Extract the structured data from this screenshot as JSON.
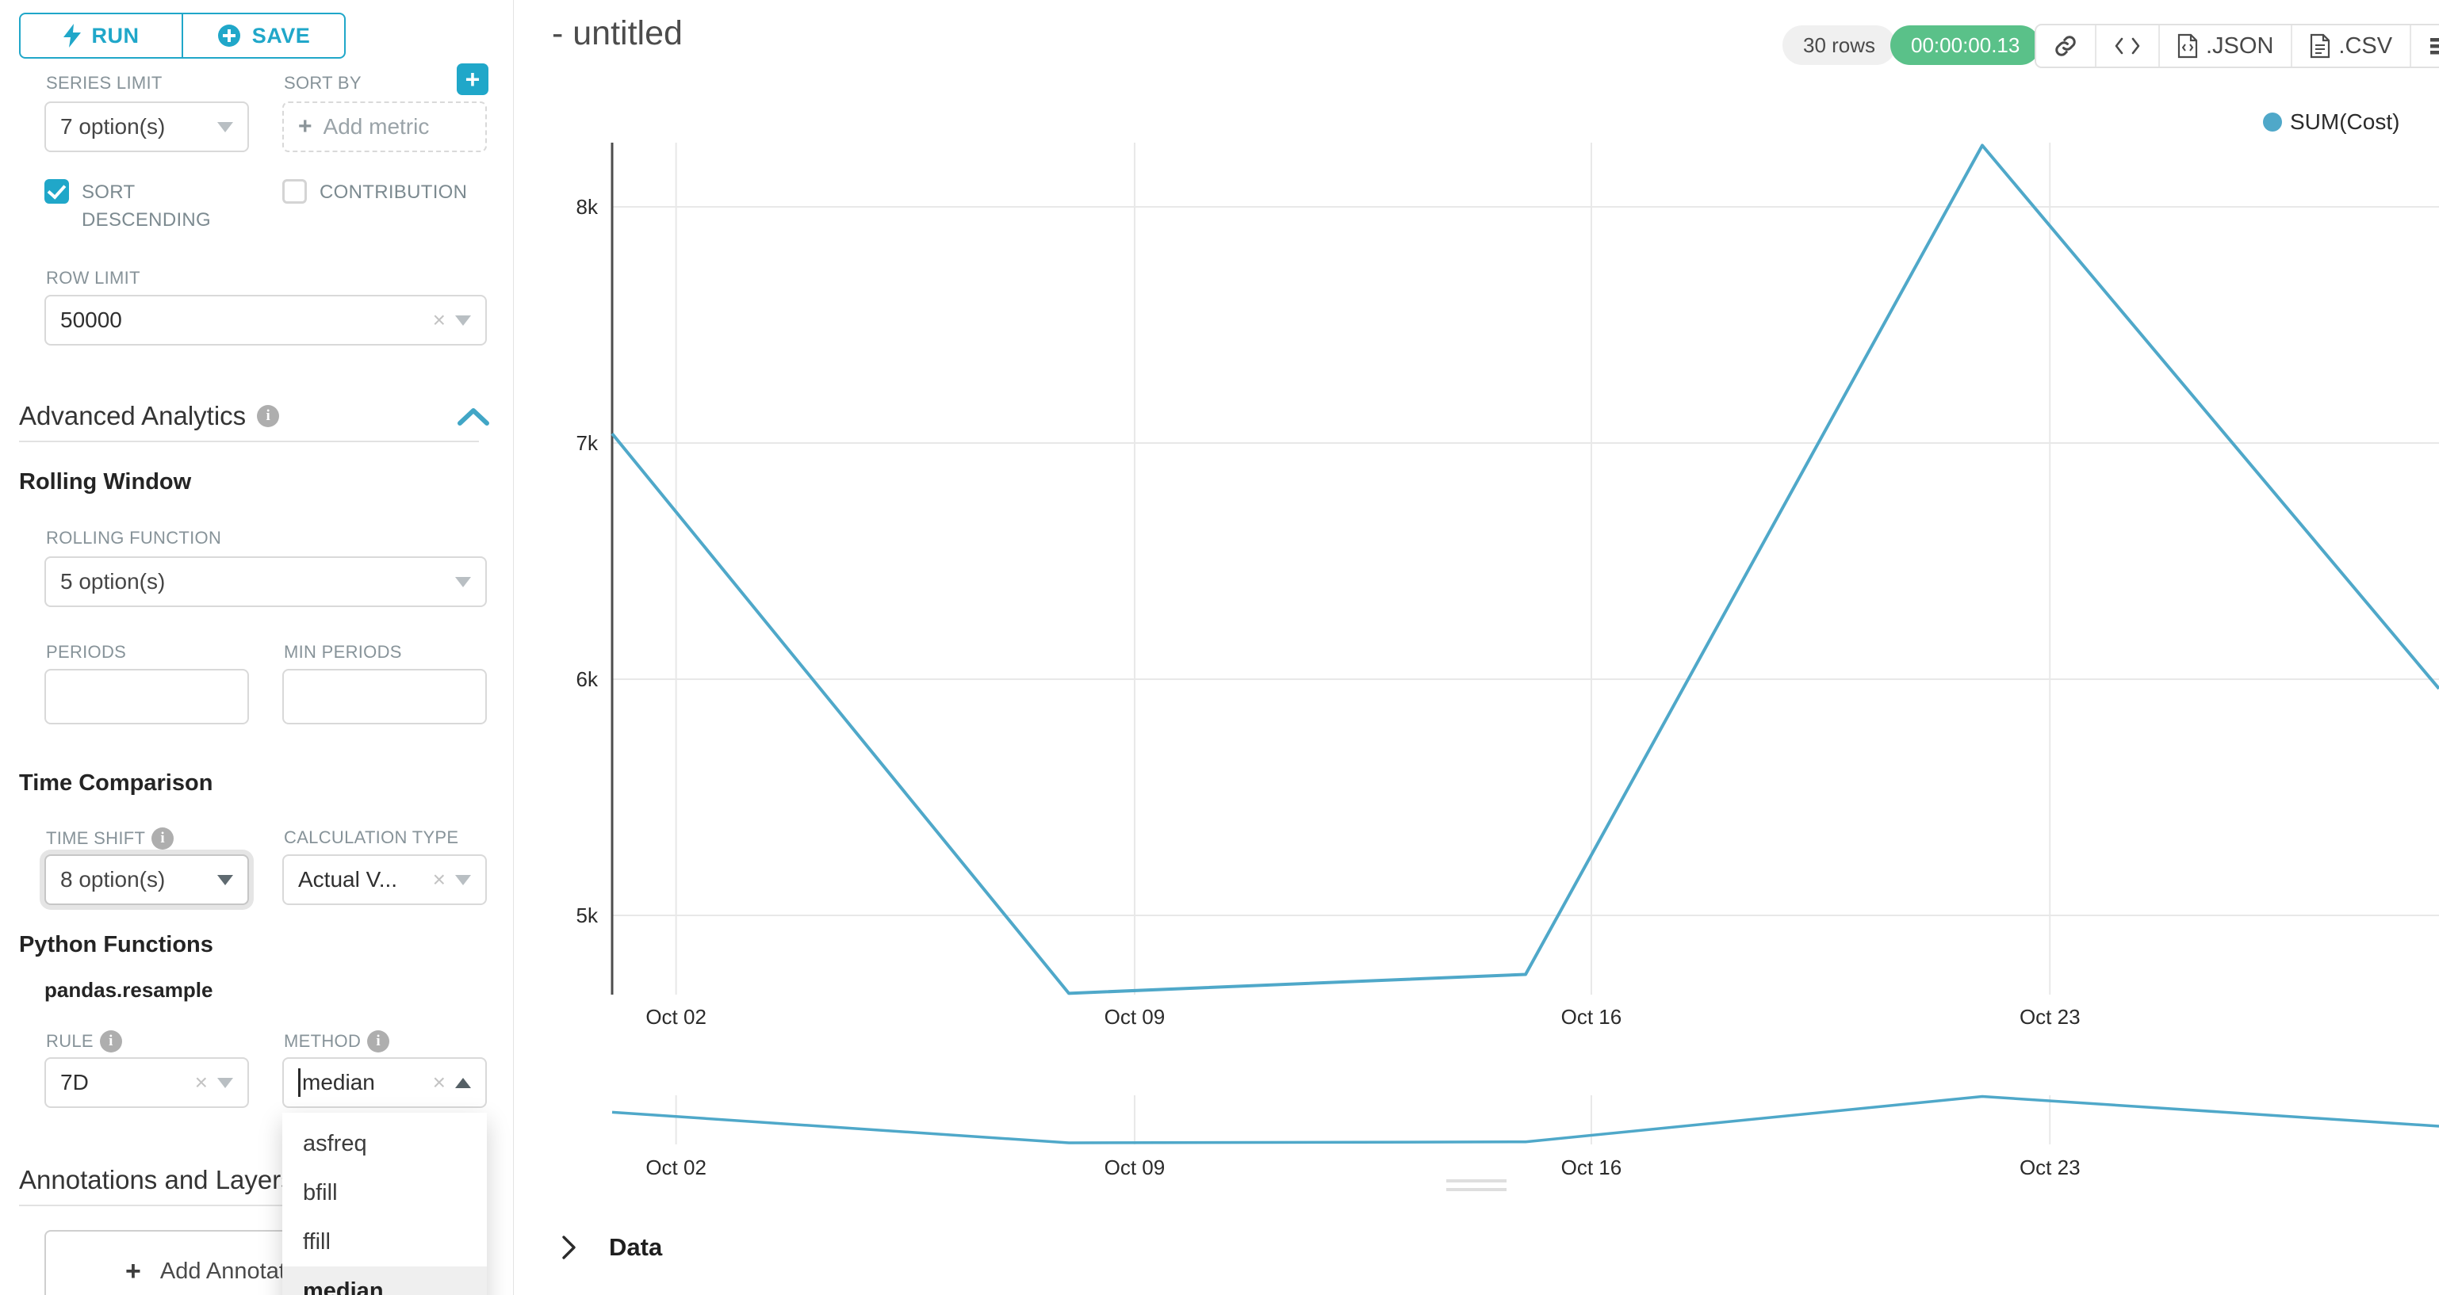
{
  "colors": {
    "accent": "#20A7C9",
    "success": "#5AC189",
    "series": "#4FA8C9",
    "grid": "#e8e8e8",
    "axis": "#4d4d4d"
  },
  "sidebar": {
    "run_button": "RUN",
    "save_button": "SAVE",
    "series_limit": {
      "label": "SERIES LIMIT",
      "value": "7 option(s)"
    },
    "sort_by": {
      "label": "SORT BY",
      "placeholder": "Add metric"
    },
    "sort_descending": {
      "label": "SORT DESCENDING",
      "checked": true
    },
    "contribution": {
      "label": "CONTRIBUTION",
      "checked": false
    },
    "row_limit": {
      "label": "ROW LIMIT",
      "value": "50000"
    },
    "advanced_analytics_title": "Advanced Analytics",
    "rolling_window": {
      "title": "Rolling Window",
      "rolling_function_label": "ROLLING FUNCTION",
      "rolling_function_value": "5 option(s)",
      "periods_label": "PERIODS",
      "min_periods_label": "MIN PERIODS"
    },
    "time_comparison": {
      "title": "Time Comparison",
      "time_shift_label": "TIME SHIFT",
      "time_shift_value": "8 option(s)",
      "calculation_type_label": "CALCULATION TYPE",
      "calculation_type_value": "Actual V..."
    },
    "python_functions": {
      "title": "Python Functions",
      "subtitle": "pandas.resample",
      "rule_label": "RULE",
      "rule_value": "7D",
      "method_label": "METHOD",
      "method_value": "median",
      "method_options": [
        "asfreq",
        "bfill",
        "ffill",
        "median"
      ],
      "method_selected": "median"
    },
    "annotations": {
      "title": "Annotations and Layers",
      "add_button": "Add Annotation Layer"
    }
  },
  "header": {
    "title": "- untitled",
    "rows_badge": "30 rows",
    "timer": "00:00:00.13",
    "export_json": ".JSON",
    "export_csv": ".CSV"
  },
  "legend": {
    "series": "SUM(Cost)"
  },
  "data_panel": {
    "label": "Data"
  },
  "chart_data": {
    "type": "line",
    "title": "- untitled",
    "legend_position": "top-right",
    "grid": true,
    "series": [
      {
        "name": "SUM(Cost)",
        "color": "#4FA8C9",
        "points": [
          {
            "xf": 0.0,
            "value": 7040
          },
          {
            "xf": 0.25,
            "value": 4670
          },
          {
            "xf": 0.5,
            "value": 4750
          },
          {
            "xf": 0.75,
            "value": 8260
          },
          {
            "xf": 1.0,
            "value": 5960
          }
        ]
      }
    ],
    "x_ticks": {
      "labels": [
        "Oct 02",
        "Oct 09",
        "Oct 16",
        "Oct 23"
      ],
      "fracs": [
        0.035,
        0.286,
        0.536,
        0.787
      ]
    },
    "y_ticks": {
      "labels": [
        "8k",
        "7k",
        "6k",
        "5k"
      ],
      "values": [
        8000,
        7000,
        6000,
        5000
      ]
    },
    "ylim": [
      4550,
      8350
    ],
    "mini_chart": {
      "type": "line",
      "role": "zoom-preview",
      "x_ticks": [
        "Oct 02",
        "Oct 09",
        "Oct 16",
        "Oct 23"
      ]
    }
  }
}
